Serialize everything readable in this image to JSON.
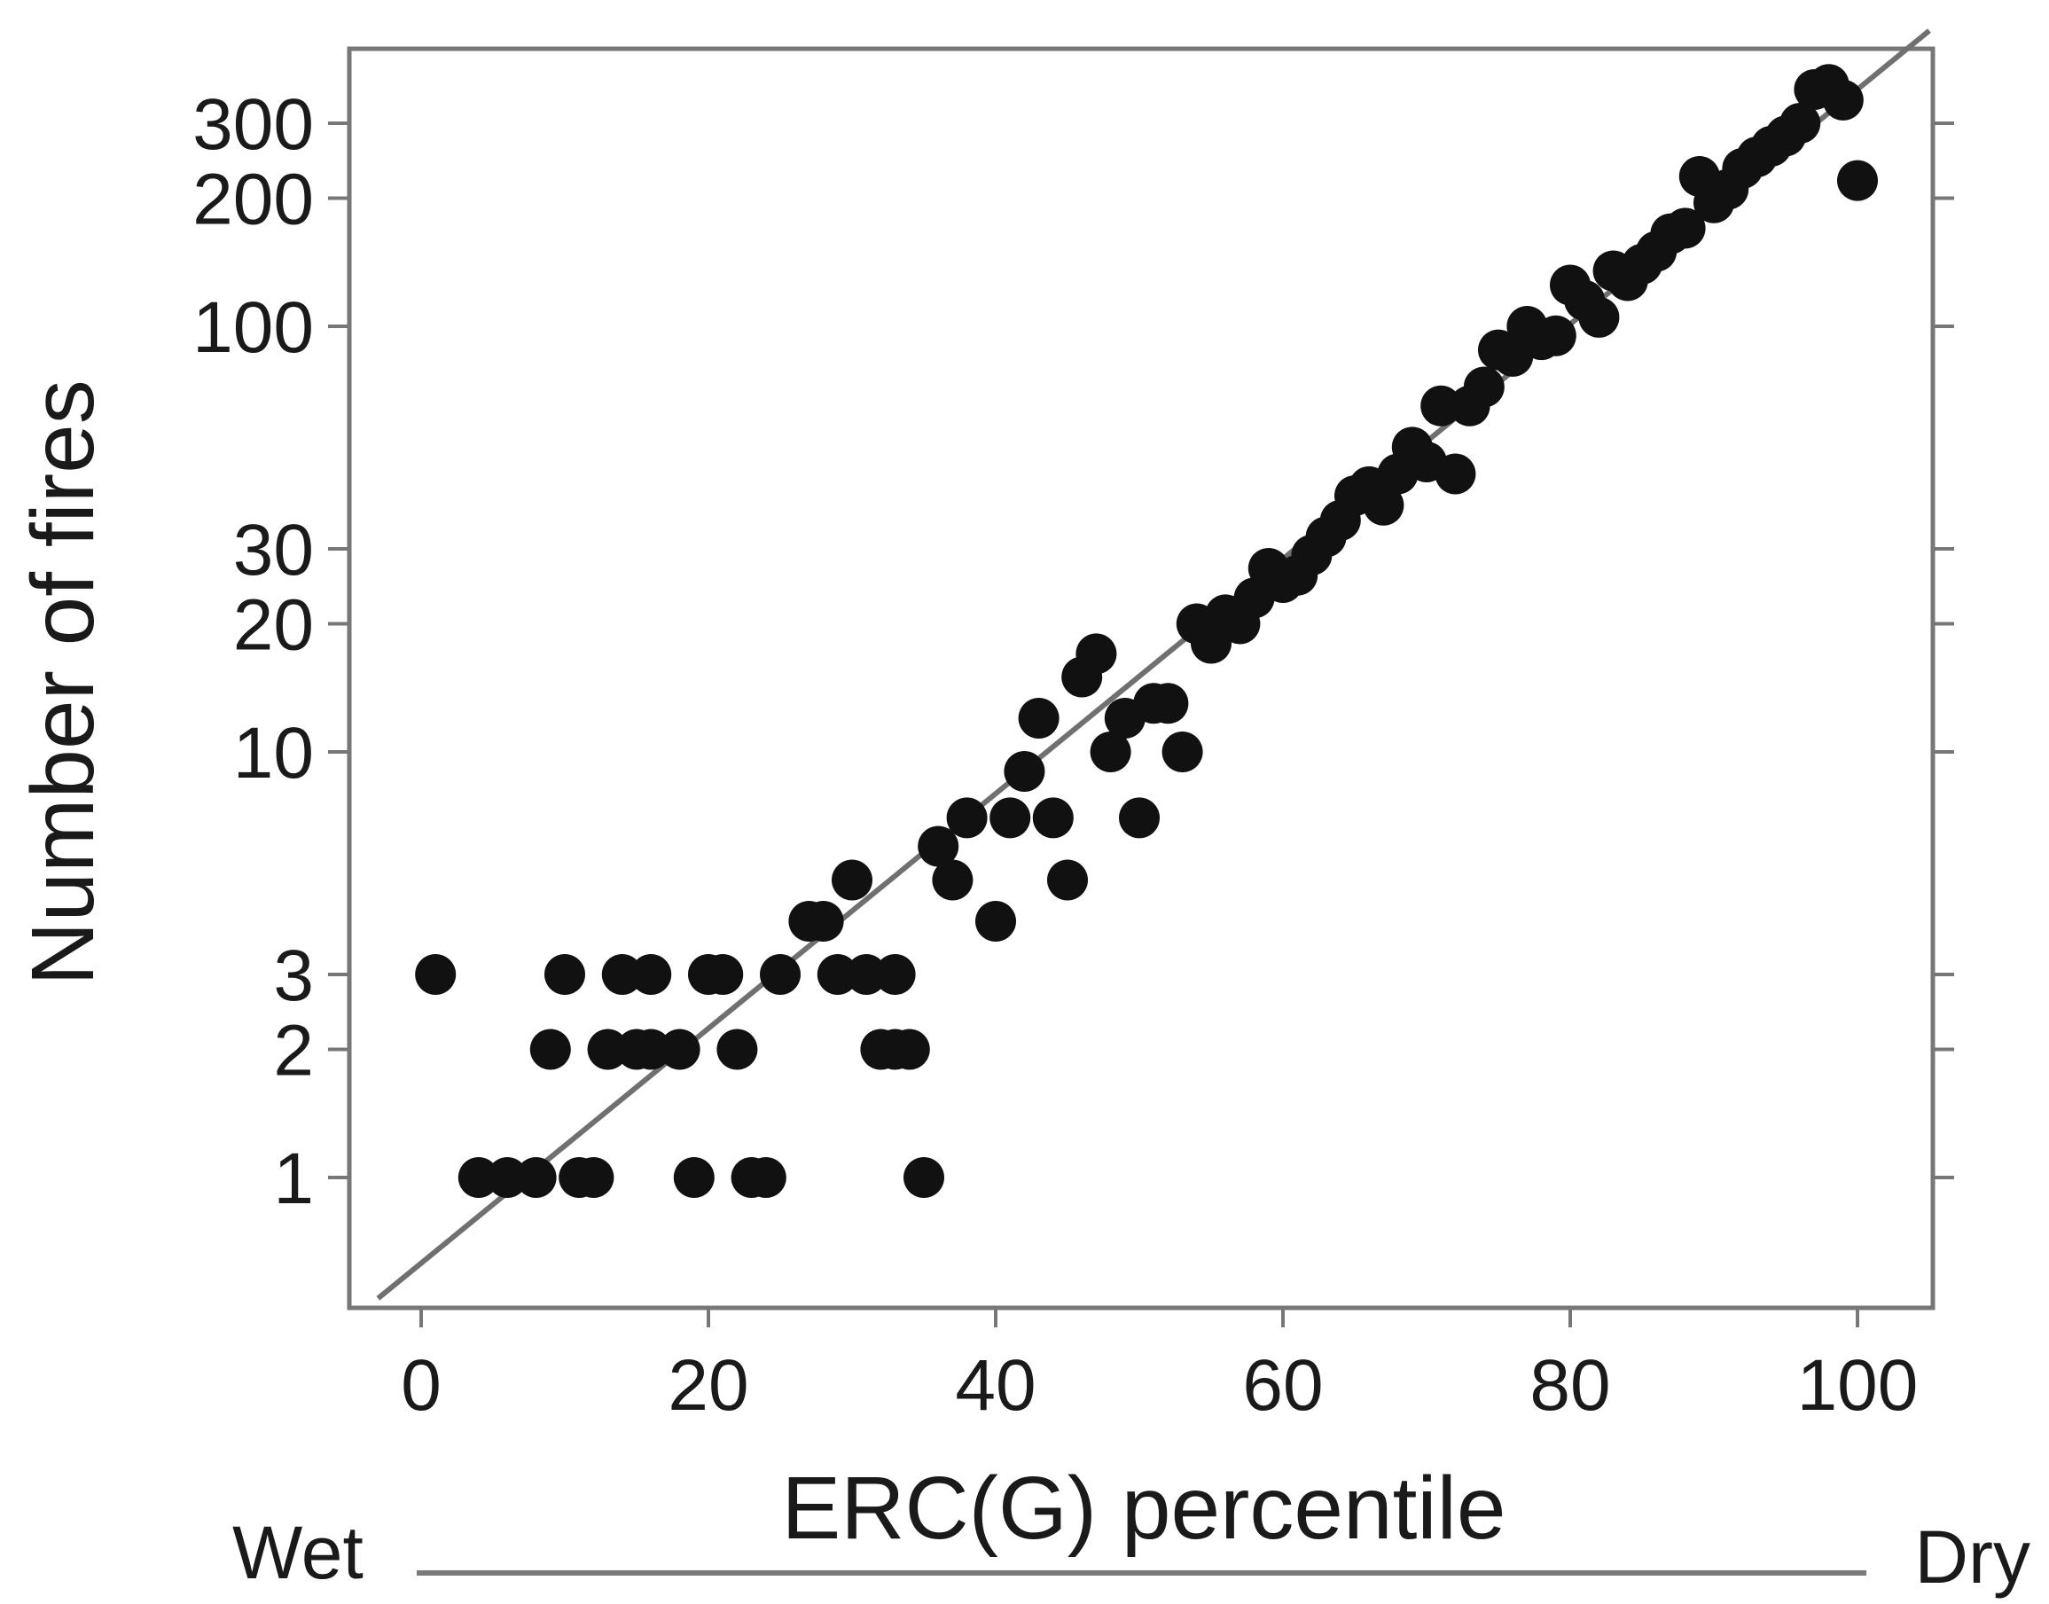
{
  "chart_data": {
    "type": "scatter",
    "title": "",
    "xlabel": "ERC(G) percentile",
    "ylabel": "Number of fires",
    "y_scale": "log",
    "xlim": [
      -5,
      105
    ],
    "ylim": [
      0.5,
      480
    ],
    "x_ticks": [
      0,
      20,
      40,
      60,
      80,
      100
    ],
    "y_ticks": [
      1,
      2,
      3,
      10,
      20,
      30,
      100,
      200,
      300
    ],
    "scale_labels": {
      "left": "Wet",
      "right": "Dry"
    },
    "fit_line": {
      "x": [
        -3,
        105
      ],
      "y": [
        0.52,
        495
      ]
    },
    "points": [
      {
        "x": 1,
        "y": 3
      },
      {
        "x": 4,
        "y": 1
      },
      {
        "x": 6,
        "y": 1
      },
      {
        "x": 8,
        "y": 1
      },
      {
        "x": 11,
        "y": 1
      },
      {
        "x": 12,
        "y": 1
      },
      {
        "x": 19,
        "y": 1
      },
      {
        "x": 23,
        "y": 1
      },
      {
        "x": 24,
        "y": 1
      },
      {
        "x": 35,
        "y": 1
      },
      {
        "x": 9,
        "y": 2
      },
      {
        "x": 13,
        "y": 2
      },
      {
        "x": 15,
        "y": 2
      },
      {
        "x": 16,
        "y": 2
      },
      {
        "x": 18,
        "y": 2
      },
      {
        "x": 22,
        "y": 2
      },
      {
        "x": 32,
        "y": 2
      },
      {
        "x": 33,
        "y": 2
      },
      {
        "x": 34,
        "y": 2
      },
      {
        "x": 10,
        "y": 3
      },
      {
        "x": 14,
        "y": 3
      },
      {
        "x": 16,
        "y": 3
      },
      {
        "x": 20,
        "y": 3
      },
      {
        "x": 21,
        "y": 3
      },
      {
        "x": 25,
        "y": 3
      },
      {
        "x": 29,
        "y": 3
      },
      {
        "x": 31,
        "y": 3
      },
      {
        "x": 33,
        "y": 3
      },
      {
        "x": 27,
        "y": 4
      },
      {
        "x": 28,
        "y": 4
      },
      {
        "x": 30,
        "y": 5
      },
      {
        "x": 36,
        "y": 6
      },
      {
        "x": 37,
        "y": 5
      },
      {
        "x": 38,
        "y": 7
      },
      {
        "x": 40,
        "y": 4
      },
      {
        "x": 41,
        "y": 7
      },
      {
        "x": 42,
        "y": 9
      },
      {
        "x": 43,
        "y": 12
      },
      {
        "x": 44,
        "y": 7
      },
      {
        "x": 45,
        "y": 5
      },
      {
        "x": 46,
        "y": 15
      },
      {
        "x": 47,
        "y": 17
      },
      {
        "x": 48,
        "y": 10
      },
      {
        "x": 50,
        "y": 7
      },
      {
        "x": 49,
        "y": 12
      },
      {
        "x": 51,
        "y": 13
      },
      {
        "x": 52,
        "y": 13
      },
      {
        "x": 53,
        "y": 10
      },
      {
        "x": 54,
        "y": 20
      },
      {
        "x": 55,
        "y": 18
      },
      {
        "x": 56,
        "y": 21
      },
      {
        "x": 57,
        "y": 20
      },
      {
        "x": 58,
        "y": 23
      },
      {
        "x": 59,
        "y": 27
      },
      {
        "x": 60,
        "y": 25
      },
      {
        "x": 61,
        "y": 26
      },
      {
        "x": 62,
        "y": 29
      },
      {
        "x": 63,
        "y": 32
      },
      {
        "x": 64,
        "y": 35
      },
      {
        "x": 65,
        "y": 40
      },
      {
        "x": 66,
        "y": 42
      },
      {
        "x": 67,
        "y": 38
      },
      {
        "x": 68,
        "y": 45
      },
      {
        "x": 69,
        "y": 52
      },
      {
        "x": 70,
        "y": 48
      },
      {
        "x": 71,
        "y": 65
      },
      {
        "x": 72,
        "y": 45
      },
      {
        "x": 73,
        "y": 65
      },
      {
        "x": 74,
        "y": 72
      },
      {
        "x": 75,
        "y": 88
      },
      {
        "x": 76,
        "y": 85
      },
      {
        "x": 77,
        "y": 100
      },
      {
        "x": 78,
        "y": 93
      },
      {
        "x": 79,
        "y": 95
      },
      {
        "x": 80,
        "y": 125
      },
      {
        "x": 81,
        "y": 115
      },
      {
        "x": 82,
        "y": 105
      },
      {
        "x": 83,
        "y": 135
      },
      {
        "x": 84,
        "y": 128
      },
      {
        "x": 85,
        "y": 140
      },
      {
        "x": 86,
        "y": 150
      },
      {
        "x": 87,
        "y": 165
      },
      {
        "x": 88,
        "y": 170
      },
      {
        "x": 89,
        "y": 225
      },
      {
        "x": 90,
        "y": 195
      },
      {
        "x": 91,
        "y": 210
      },
      {
        "x": 92,
        "y": 235
      },
      {
        "x": 93,
        "y": 250
      },
      {
        "x": 94,
        "y": 265
      },
      {
        "x": 95,
        "y": 280
      },
      {
        "x": 96,
        "y": 300
      },
      {
        "x": 97,
        "y": 360
      },
      {
        "x": 98,
        "y": 370
      },
      {
        "x": 99,
        "y": 340
      },
      {
        "x": 100,
        "y": 220
      }
    ]
  }
}
